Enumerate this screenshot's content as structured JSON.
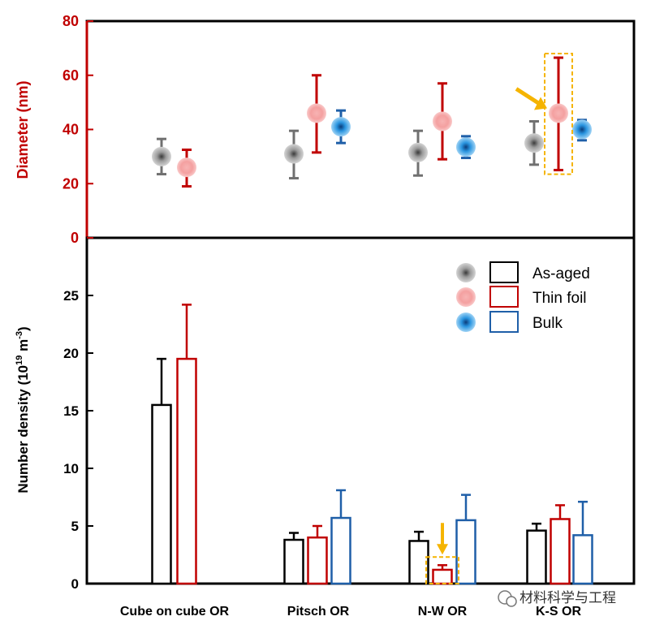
{
  "watermark": "材料科学与工程",
  "legend": [
    "As-aged",
    "Thin foil",
    "Bulk"
  ],
  "colors": {
    "as_aged": "#000000",
    "thin_foil": "#c00000",
    "bulk": "#1f5fa8",
    "highlight": "#f5b400",
    "as_aged_dot": "#9a9a9a",
    "thin_foil_dot": "#f4a0a0",
    "bulk_dot": "#2a95e0"
  },
  "chart_data": [
    {
      "type": "scatter",
      "ylabel": "Diameter (nm)",
      "ylim": [
        0,
        80
      ],
      "yticks": [
        "0",
        "20",
        "40",
        "60",
        "80"
      ],
      "categories": [
        "Cube on cube OR",
        "Pitsch OR",
        "N-W OR",
        "K-S OR"
      ],
      "series": [
        {
          "name": "As-aged",
          "values": [
            30,
            31,
            31.5,
            35
          ],
          "err_low": [
            23.5,
            22,
            23,
            27
          ],
          "err_high": [
            36.5,
            39.5,
            39.5,
            43
          ]
        },
        {
          "name": "Thin foil",
          "values": [
            26,
            46,
            43,
            46
          ],
          "err_low": [
            19,
            31.5,
            29,
            25
          ],
          "err_high": [
            32.5,
            60,
            57,
            66.5
          ]
        },
        {
          "name": "Bulk",
          "values": [
            null,
            41,
            33.5,
            40
          ],
          "err_low": [
            null,
            35,
            29.5,
            36
          ],
          "err_high": [
            null,
            47,
            37.5,
            43.5
          ]
        }
      ],
      "highlight": {
        "category": "K-S OR",
        "series": "Thin foil"
      }
    },
    {
      "type": "bar",
      "ylabel": "Number density (10",
      "ylabel_sup1": "19",
      "ylabel_mid": " m",
      "ylabel_sup2": "-3",
      "ylabel_end": ")",
      "ylim": [
        0,
        30
      ],
      "yticks": [
        "0",
        "5",
        "10",
        "15",
        "20",
        "25"
      ],
      "categories": [
        "Cube on cube OR",
        "Pitsch OR",
        "N-W OR",
        "K-S OR"
      ],
      "series": [
        {
          "name": "As-aged",
          "values": [
            15.5,
            3.8,
            3.7,
            4.6
          ],
          "err": [
            4.0,
            0.6,
            0.8,
            0.6
          ]
        },
        {
          "name": "Thin foil",
          "values": [
            19.5,
            4.0,
            1.2,
            5.6
          ],
          "err": [
            4.7,
            1.0,
            0.4,
            1.2
          ]
        },
        {
          "name": "Bulk",
          "values": [
            null,
            5.7,
            5.5,
            4.2
          ],
          "err": [
            null,
            2.4,
            2.2,
            2.9
          ]
        }
      ],
      "highlight": {
        "category": "N-W OR",
        "series": "Thin foil"
      }
    }
  ]
}
